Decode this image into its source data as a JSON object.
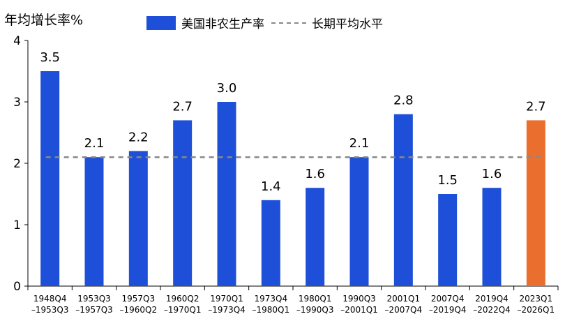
{
  "chart_data": {
    "type": "bar",
    "ylabel": "年均增长率%",
    "ylim": [
      0,
      4
    ],
    "yticks": [
      "0",
      "1",
      "2",
      "3",
      "4"
    ],
    "categories": [
      [
        "1948Q4",
        "–1953Q3"
      ],
      [
        "1953Q3",
        "–1957Q3"
      ],
      [
        "1957Q3",
        "–1960Q2"
      ],
      [
        "1960Q2",
        "–1970Q1"
      ],
      [
        "1970Q1",
        "–1973Q4"
      ],
      [
        "1973Q4",
        "–1980Q1"
      ],
      [
        "1980Q1",
        "–1990Q3"
      ],
      [
        "1990Q3",
        "–2001Q1"
      ],
      [
        "2001Q1",
        "–2007Q4"
      ],
      [
        "2007Q4",
        "–2019Q4"
      ],
      [
        "2019Q4",
        "–2022Q4"
      ],
      [
        "2023Q1",
        "–2026Q1"
      ]
    ],
    "series": [
      {
        "name": "美国非农生产率",
        "values": [
          3.5,
          2.1,
          2.2,
          2.7,
          3.0,
          1.4,
          1.6,
          2.1,
          2.8,
          1.5,
          1.6,
          2.7
        ],
        "labels": [
          "3.5",
          "2.1",
          "2.2",
          "2.7",
          "3.0",
          "1.4",
          "1.6",
          "2.1",
          "2.8",
          "1.5",
          "1.6",
          "2.7"
        ],
        "color": "#1d4fd8",
        "highlight_color": "#ea6f2e",
        "highlight_index": 11
      }
    ],
    "reference_line": {
      "name": "长期平均水平",
      "value": 2.1,
      "color": "#888888",
      "style": "dashed"
    },
    "legend_position": "top-center",
    "grid": false
  }
}
